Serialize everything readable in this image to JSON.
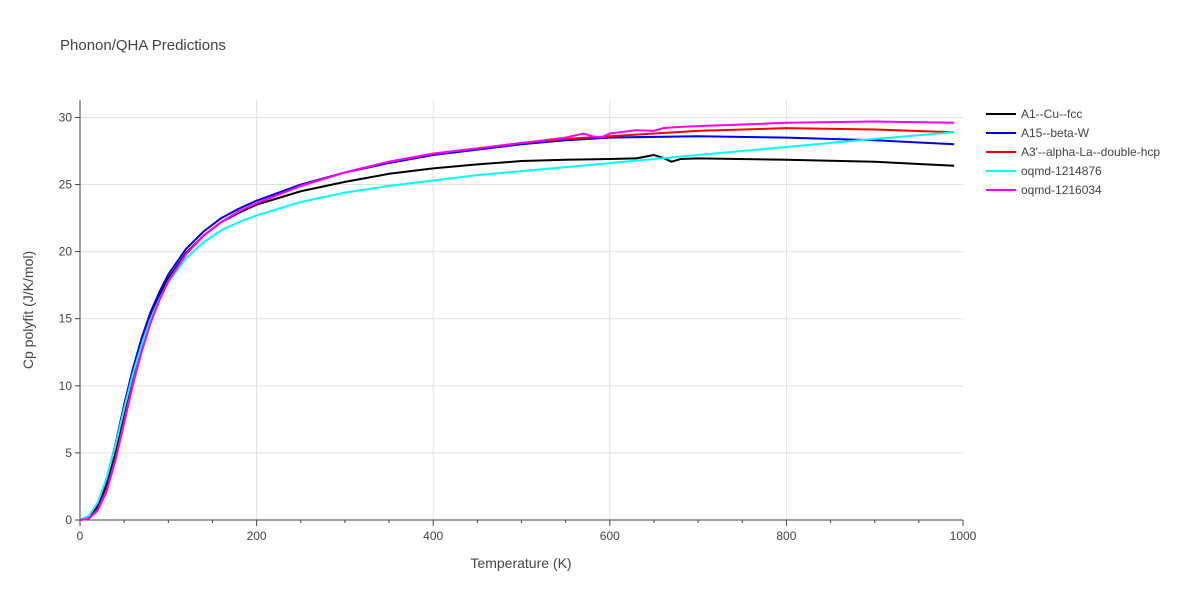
{
  "chart_data": {
    "type": "line",
    "title": "Phonon/QHA Predictions",
    "xlabel": "Temperature (K)",
    "ylabel": "Cp polyfit (J/K/mol)",
    "xlim": [
      0,
      1000
    ],
    "ylim": [
      0,
      31.3
    ],
    "xticks": [
      0,
      200,
      400,
      600,
      800,
      1000
    ],
    "yticks": [
      0,
      5,
      10,
      15,
      20,
      25,
      30
    ],
    "grid": true,
    "legend_position": "right",
    "series": [
      {
        "name": "A1--Cu--fcc",
        "color": "#000000",
        "points": [
          [
            0,
            0
          ],
          [
            10,
            0.2
          ],
          [
            20,
            1.0
          ],
          [
            30,
            2.6
          ],
          [
            40,
            5.0
          ],
          [
            50,
            8.0
          ],
          [
            60,
            10.8
          ],
          [
            70,
            13.1
          ],
          [
            80,
            15.1
          ],
          [
            90,
            16.7
          ],
          [
            100,
            18.0
          ],
          [
            120,
            19.9
          ],
          [
            140,
            21.2
          ],
          [
            160,
            22.2
          ],
          [
            180,
            22.9
          ],
          [
            200,
            23.5
          ],
          [
            250,
            24.5
          ],
          [
            300,
            25.2
          ],
          [
            350,
            25.8
          ],
          [
            400,
            26.2
          ],
          [
            450,
            26.5
          ],
          [
            500,
            26.75
          ],
          [
            550,
            26.85
          ],
          [
            600,
            26.9
          ],
          [
            630,
            26.95
          ],
          [
            650,
            27.2
          ],
          [
            660,
            27.0
          ],
          [
            670,
            26.7
          ],
          [
            680,
            26.9
          ],
          [
            700,
            26.95
          ],
          [
            800,
            26.85
          ],
          [
            900,
            26.7
          ],
          [
            990,
            26.4
          ]
        ]
      },
      {
        "name": "A15--beta-W",
        "color": "#0000ee",
        "points": [
          [
            0,
            0
          ],
          [
            10,
            0.3
          ],
          [
            20,
            1.2
          ],
          [
            30,
            3.0
          ],
          [
            40,
            5.6
          ],
          [
            50,
            8.6
          ],
          [
            60,
            11.3
          ],
          [
            70,
            13.6
          ],
          [
            80,
            15.5
          ],
          [
            90,
            17.0
          ],
          [
            100,
            18.3
          ],
          [
            120,
            20.2
          ],
          [
            140,
            21.5
          ],
          [
            160,
            22.5
          ],
          [
            180,
            23.2
          ],
          [
            200,
            23.8
          ],
          [
            250,
            25.0
          ],
          [
            300,
            25.9
          ],
          [
            350,
            26.6
          ],
          [
            400,
            27.2
          ],
          [
            450,
            27.6
          ],
          [
            500,
            28.0
          ],
          [
            550,
            28.3
          ],
          [
            600,
            28.5
          ],
          [
            700,
            28.6
          ],
          [
            800,
            28.5
          ],
          [
            900,
            28.3
          ],
          [
            990,
            28.0
          ]
        ]
      },
      {
        "name": "A3'--alpha-La--double-hcp",
        "color": "#ff0000",
        "points": [
          [
            0,
            0
          ],
          [
            10,
            0.1
          ],
          [
            20,
            0.8
          ],
          [
            30,
            2.2
          ],
          [
            40,
            4.5
          ],
          [
            50,
            7.3
          ],
          [
            60,
            10.2
          ],
          [
            70,
            12.6
          ],
          [
            80,
            14.7
          ],
          [
            90,
            16.4
          ],
          [
            100,
            17.8
          ],
          [
            120,
            19.8
          ],
          [
            140,
            21.2
          ],
          [
            160,
            22.2
          ],
          [
            180,
            23.0
          ],
          [
            200,
            23.6
          ],
          [
            250,
            24.9
          ],
          [
            300,
            25.9
          ],
          [
            350,
            26.7
          ],
          [
            400,
            27.3
          ],
          [
            450,
            27.7
          ],
          [
            500,
            28.1
          ],
          [
            550,
            28.4
          ],
          [
            600,
            28.6
          ],
          [
            650,
            28.8
          ],
          [
            700,
            29.0
          ],
          [
            800,
            29.2
          ],
          [
            900,
            29.1
          ],
          [
            990,
            28.9
          ]
        ]
      },
      {
        "name": "oqmd-1214876",
        "color": "#00ffff",
        "points": [
          [
            0,
            0
          ],
          [
            10,
            0.3
          ],
          [
            20,
            1.3
          ],
          [
            30,
            3.1
          ],
          [
            40,
            5.5
          ],
          [
            50,
            8.3
          ],
          [
            60,
            10.9
          ],
          [
            70,
            13.1
          ],
          [
            80,
            15.0
          ],
          [
            90,
            16.5
          ],
          [
            100,
            17.7
          ],
          [
            120,
            19.5
          ],
          [
            140,
            20.7
          ],
          [
            160,
            21.6
          ],
          [
            180,
            22.2
          ],
          [
            200,
            22.7
          ],
          [
            250,
            23.7
          ],
          [
            300,
            24.4
          ],
          [
            350,
            24.9
          ],
          [
            400,
            25.3
          ],
          [
            450,
            25.7
          ],
          [
            500,
            26.0
          ],
          [
            550,
            26.3
          ],
          [
            600,
            26.6
          ],
          [
            650,
            26.9
          ],
          [
            700,
            27.2
          ],
          [
            800,
            27.8
          ],
          [
            900,
            28.4
          ],
          [
            990,
            28.9
          ]
        ]
      },
      {
        "name": "oqmd-1216034",
        "color": "#ff00ff",
        "points": [
          [
            0,
            0
          ],
          [
            10,
            0.1
          ],
          [
            20,
            0.7
          ],
          [
            30,
            2.1
          ],
          [
            40,
            4.4
          ],
          [
            50,
            7.2
          ],
          [
            60,
            10.1
          ],
          [
            70,
            12.6
          ],
          [
            80,
            14.7
          ],
          [
            90,
            16.4
          ],
          [
            100,
            17.8
          ],
          [
            120,
            19.8
          ],
          [
            140,
            21.2
          ],
          [
            160,
            22.2
          ],
          [
            180,
            23.0
          ],
          [
            200,
            23.6
          ],
          [
            250,
            24.9
          ],
          [
            300,
            25.9
          ],
          [
            350,
            26.7
          ],
          [
            400,
            27.3
          ],
          [
            450,
            27.7
          ],
          [
            500,
            28.1
          ],
          [
            550,
            28.5
          ],
          [
            570,
            28.8
          ],
          [
            580,
            28.6
          ],
          [
            590,
            28.5
          ],
          [
            600,
            28.8
          ],
          [
            630,
            29.05
          ],
          [
            650,
            29.0
          ],
          [
            660,
            29.2
          ],
          [
            680,
            29.3
          ],
          [
            700,
            29.35
          ],
          [
            800,
            29.6
          ],
          [
            900,
            29.7
          ],
          [
            990,
            29.6
          ]
        ]
      }
    ]
  }
}
